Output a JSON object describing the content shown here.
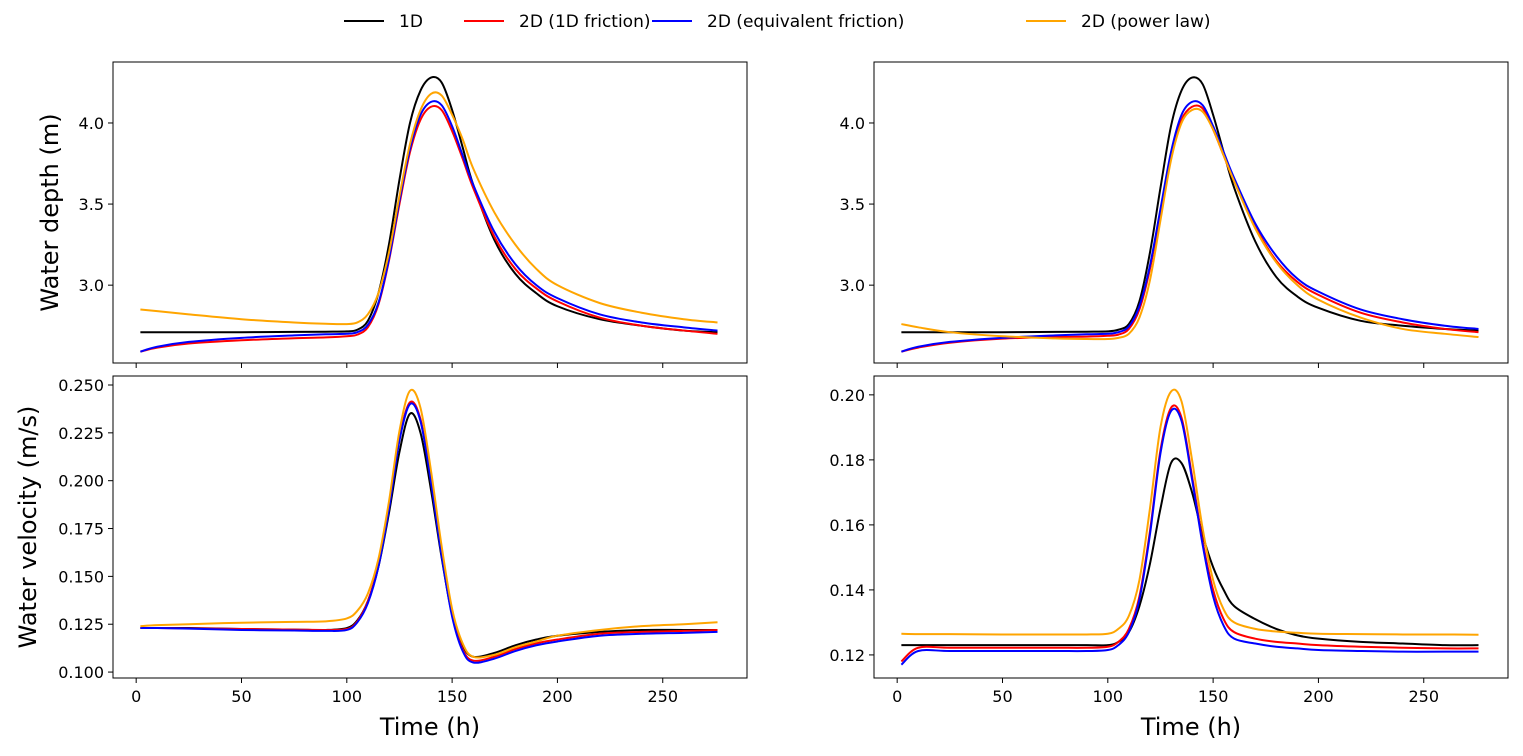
{
  "legend": [
    "1D",
    "2D (1D friction)",
    "2D (equivalent friction)",
    "2D (power law)"
  ],
  "colors": [
    "#000000",
    "#ff0000",
    "#0000ff",
    "#ffa500"
  ],
  "chart_data": [
    {
      "type": "line",
      "panel": "top-left",
      "ylabel": "Water depth (m)",
      "xlabel": "",
      "xlim": [
        -11,
        290
      ],
      "ylim": [
        2.52,
        4.376
      ],
      "xticks": [
        0,
        50,
        100,
        150,
        200,
        250
      ],
      "xticklabels_shown": false,
      "yticks": [
        3.0,
        3.5,
        4.0
      ],
      "yticklabels": [
        "3.0",
        "3.5",
        "4.0"
      ],
      "x": [
        2,
        10,
        25,
        50,
        75,
        90,
        100,
        105,
        110,
        115,
        120,
        125,
        130,
        135,
        140,
        145,
        150,
        155,
        160,
        170,
        180,
        190,
        200,
        220,
        240,
        260,
        276
      ],
      "series": [
        {
          "name": "1D",
          "values": [
            2.71,
            2.71,
            2.71,
            2.71,
            2.712,
            2.713,
            2.715,
            2.725,
            2.78,
            2.95,
            3.25,
            3.65,
            4.0,
            4.2,
            4.28,
            4.25,
            4.08,
            3.85,
            3.62,
            3.28,
            3.07,
            2.95,
            2.87,
            2.79,
            2.75,
            2.72,
            2.71
          ]
        },
        {
          "name": "2D (1D friction)",
          "values": [
            2.59,
            2.615,
            2.64,
            2.66,
            2.673,
            2.678,
            2.685,
            2.695,
            2.74,
            2.88,
            3.15,
            3.5,
            3.82,
            4.02,
            4.1,
            4.08,
            3.95,
            3.78,
            3.6,
            3.3,
            3.1,
            2.98,
            2.9,
            2.8,
            2.75,
            2.72,
            2.7
          ]
        },
        {
          "name": "2D (equivalent friction)",
          "values": [
            2.59,
            2.62,
            2.65,
            2.675,
            2.69,
            2.697,
            2.7,
            2.71,
            2.755,
            2.89,
            3.16,
            3.52,
            3.84,
            4.05,
            4.13,
            4.11,
            3.98,
            3.8,
            3.62,
            3.33,
            3.13,
            3.0,
            2.92,
            2.82,
            2.77,
            2.74,
            2.72
          ]
        },
        {
          "name": "2D (power law)",
          "values": [
            2.85,
            2.84,
            2.82,
            2.79,
            2.77,
            2.762,
            2.76,
            2.77,
            2.82,
            2.95,
            3.2,
            3.55,
            3.87,
            4.08,
            4.18,
            4.17,
            4.05,
            3.9,
            3.72,
            3.45,
            3.25,
            3.1,
            3.0,
            2.89,
            2.83,
            2.79,
            2.77
          ]
        }
      ]
    },
    {
      "type": "line",
      "panel": "top-right",
      "ylabel": "",
      "xlabel": "",
      "xlim": [
        -11,
        290
      ],
      "ylim": [
        2.52,
        4.376
      ],
      "xticks": [
        0,
        50,
        100,
        150,
        200,
        250
      ],
      "xticklabels_shown": false,
      "yticks": [
        3.0,
        3.5,
        4.0
      ],
      "yticklabels": [
        "3.0",
        "3.5",
        "4.0"
      ],
      "x": [
        2,
        10,
        25,
        50,
        75,
        90,
        100,
        105,
        110,
        115,
        120,
        125,
        130,
        135,
        140,
        145,
        150,
        155,
        160,
        170,
        180,
        190,
        200,
        220,
        240,
        260,
        276
      ],
      "series": [
        {
          "name": "1D",
          "values": [
            2.71,
            2.71,
            2.71,
            2.71,
            2.712,
            2.713,
            2.715,
            2.725,
            2.76,
            2.9,
            3.2,
            3.6,
            3.98,
            4.2,
            4.28,
            4.24,
            4.05,
            3.82,
            3.6,
            3.27,
            3.05,
            2.93,
            2.86,
            2.78,
            2.75,
            2.73,
            2.72
          ]
        },
        {
          "name": "2D (1D friction)",
          "values": [
            2.59,
            2.615,
            2.645,
            2.67,
            2.68,
            2.683,
            2.688,
            2.695,
            2.73,
            2.85,
            3.1,
            3.45,
            3.8,
            4.02,
            4.1,
            4.09,
            3.96,
            3.8,
            3.64,
            3.36,
            3.15,
            3.02,
            2.94,
            2.83,
            2.77,
            2.73,
            2.71
          ]
        },
        {
          "name": "2D (equivalent friction)",
          "values": [
            2.59,
            2.62,
            2.65,
            2.675,
            2.69,
            2.697,
            2.7,
            2.71,
            2.745,
            2.87,
            3.12,
            3.47,
            3.82,
            4.05,
            4.13,
            4.11,
            3.98,
            3.82,
            3.66,
            3.38,
            3.18,
            3.04,
            2.96,
            2.85,
            2.79,
            2.75,
            2.73
          ]
        },
        {
          "name": "2D (power law)",
          "values": [
            2.76,
            2.74,
            2.71,
            2.685,
            2.672,
            2.668,
            2.668,
            2.675,
            2.7,
            2.8,
            3.03,
            3.4,
            3.77,
            4.0,
            4.08,
            4.07,
            3.96,
            3.8,
            3.64,
            3.35,
            3.14,
            3.0,
            2.91,
            2.8,
            2.73,
            2.7,
            2.68
          ]
        }
      ]
    },
    {
      "type": "line",
      "panel": "bottom-left",
      "ylabel": "Water velocity (m/s)",
      "xlabel": "Time (h)",
      "xlim": [
        -11,
        290
      ],
      "ylim": [
        0.0969,
        0.2547
      ],
      "xticks": [
        0,
        50,
        100,
        150,
        200,
        250
      ],
      "xticklabels": [
        "0",
        "50",
        "100",
        "150",
        "200",
        "250"
      ],
      "xticklabels_shown": true,
      "yticks": [
        0.1,
        0.125,
        0.15,
        0.175,
        0.2,
        0.225,
        0.25
      ],
      "yticklabels": [
        "0.100",
        "0.125",
        "0.150",
        "0.175",
        "0.200",
        "0.225",
        "0.250"
      ],
      "x": [
        2,
        10,
        25,
        50,
        75,
        90,
        100,
        105,
        110,
        115,
        120,
        125,
        130,
        135,
        140,
        145,
        150,
        155,
        160,
        170,
        180,
        190,
        200,
        220,
        240,
        260,
        276
      ],
      "series": [
        {
          "name": "1D",
          "values": [
            0.123,
            0.123,
            0.123,
            0.1225,
            0.1222,
            0.122,
            0.123,
            0.127,
            0.137,
            0.155,
            0.183,
            0.215,
            0.235,
            0.225,
            0.195,
            0.16,
            0.13,
            0.114,
            0.108,
            0.11,
            0.114,
            0.117,
            0.119,
            0.121,
            0.122,
            0.122,
            0.122
          ]
        },
        {
          "name": "2D (1D friction)",
          "values": [
            0.123,
            0.123,
            0.1228,
            0.1225,
            0.1222,
            0.122,
            0.1225,
            0.1265,
            0.137,
            0.156,
            0.186,
            0.222,
            0.241,
            0.232,
            0.2,
            0.162,
            0.13,
            0.112,
            0.106,
            0.108,
            0.112,
            0.115,
            0.117,
            0.12,
            0.121,
            0.1215,
            0.122
          ]
        },
        {
          "name": "2D (equivalent friction)",
          "values": [
            0.123,
            0.123,
            0.1227,
            0.122,
            0.1217,
            0.1215,
            0.122,
            0.126,
            0.136,
            0.155,
            0.185,
            0.221,
            0.24,
            0.231,
            0.199,
            0.161,
            0.129,
            0.111,
            0.105,
            0.107,
            0.111,
            0.114,
            0.116,
            0.119,
            0.12,
            0.1205,
            0.121
          ]
        },
        {
          "name": "2D (power law)",
          "values": [
            0.124,
            0.1245,
            0.125,
            0.1258,
            0.1262,
            0.1265,
            0.128,
            0.132,
            0.141,
            0.159,
            0.189,
            0.226,
            0.247,
            0.238,
            0.205,
            0.166,
            0.133,
            0.115,
            0.108,
            0.109,
            0.113,
            0.116,
            0.119,
            0.122,
            0.124,
            0.125,
            0.126
          ]
        }
      ]
    },
    {
      "type": "line",
      "panel": "bottom-right",
      "ylabel": "",
      "xlabel": "Time (h)",
      "xlim": [
        -11,
        290
      ],
      "ylim": [
        0.1129,
        0.2058
      ],
      "xticks": [
        0,
        50,
        100,
        150,
        200,
        250
      ],
      "xticklabels": [
        "0",
        "50",
        "100",
        "150",
        "200",
        "250"
      ],
      "xticklabels_shown": true,
      "yticks": [
        0.12,
        0.14,
        0.16,
        0.18,
        0.2
      ],
      "yticklabels": [
        "0.12",
        "0.14",
        "0.16",
        "0.18",
        "0.20"
      ],
      "x": [
        2,
        10,
        25,
        50,
        75,
        90,
        100,
        105,
        110,
        115,
        120,
        125,
        130,
        135,
        140,
        145,
        150,
        155,
        160,
        170,
        180,
        190,
        200,
        220,
        240,
        260,
        276
      ],
      "series": [
        {
          "name": "1D",
          "values": [
            0.123,
            0.123,
            0.123,
            0.123,
            0.123,
            0.123,
            0.123,
            0.124,
            0.127,
            0.135,
            0.148,
            0.165,
            0.179,
            0.179,
            0.17,
            0.157,
            0.147,
            0.14,
            0.135,
            0.131,
            0.128,
            0.126,
            0.125,
            0.124,
            0.1235,
            0.123,
            0.123
          ]
        },
        {
          "name": "2D (1D friction)",
          "values": [
            0.118,
            0.1222,
            0.1222,
            0.1222,
            0.1222,
            0.1222,
            0.1225,
            0.124,
            0.128,
            0.138,
            0.158,
            0.183,
            0.196,
            0.193,
            0.175,
            0.155,
            0.14,
            0.131,
            0.127,
            0.125,
            0.124,
            0.1235,
            0.123,
            0.1225,
            0.1222,
            0.122,
            0.122
          ]
        },
        {
          "name": "2D (equivalent friction)",
          "values": [
            0.117,
            0.1212,
            0.1212,
            0.1212,
            0.1212,
            0.1212,
            0.1215,
            0.123,
            0.127,
            0.137,
            0.157,
            0.182,
            0.195,
            0.192,
            0.174,
            0.154,
            0.138,
            0.129,
            0.125,
            0.1235,
            0.1225,
            0.122,
            0.1215,
            0.1212,
            0.121,
            0.121,
            0.121
          ]
        },
        {
          "name": "2D (power law)",
          "values": [
            0.1265,
            0.1264,
            0.1264,
            0.1263,
            0.1263,
            0.1263,
            0.1265,
            0.128,
            0.132,
            0.143,
            0.165,
            0.19,
            0.201,
            0.198,
            0.18,
            0.159,
            0.143,
            0.134,
            0.13,
            0.128,
            0.1272,
            0.1268,
            0.1265,
            0.1264,
            0.1263,
            0.1263,
            0.1262
          ]
        }
      ]
    }
  ]
}
